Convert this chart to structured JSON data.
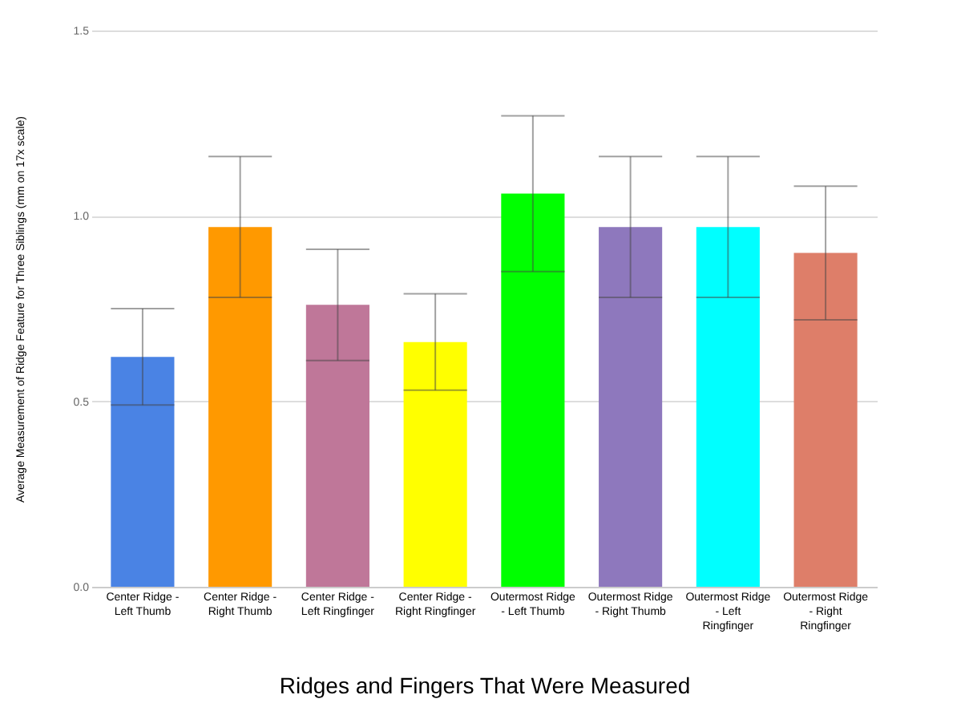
{
  "chart_data": {
    "type": "bar",
    "xlabel": "Ridges and Fingers That Were Measured",
    "ylabel": "Average Measurement of Ridge Feature for Three Siblings (mm on 17x scale)",
    "categories": [
      "Center Ridge - Left Thumb",
      "Center Ridge - Right Thumb",
      "Center Ridge - Left Ringfinger",
      "Center Ridge - Right Ringfinger",
      "Outermost Ridge - Left Thumb",
      "Outermost Ridge - Right Thumb",
      "Outermost Ridge - Left Ringfinger",
      "Outermost Ridge - Right Ringfinger"
    ],
    "values": [
      0.62,
      0.97,
      0.76,
      0.66,
      1.06,
      0.97,
      0.97,
      0.9
    ],
    "errors": [
      0.13,
      0.19,
      0.15,
      0.13,
      0.21,
      0.19,
      0.19,
      0.18
    ],
    "colors": [
      "#4a83e4",
      "#ff9900",
      "#bf7799",
      "#ffff00",
      "#00ff00",
      "#8e78bd",
      "#00ffff",
      "#de7e69"
    ],
    "ylim": [
      0,
      1.5
    ],
    "yticks": [
      {
        "value": 0,
        "label": "0.0"
      },
      {
        "value": 0.5,
        "label": "0.5"
      },
      {
        "value": 1,
        "label": "1.0"
      },
      {
        "value": 1.5,
        "label": "1.5"
      }
    ],
    "grid": "y"
  }
}
